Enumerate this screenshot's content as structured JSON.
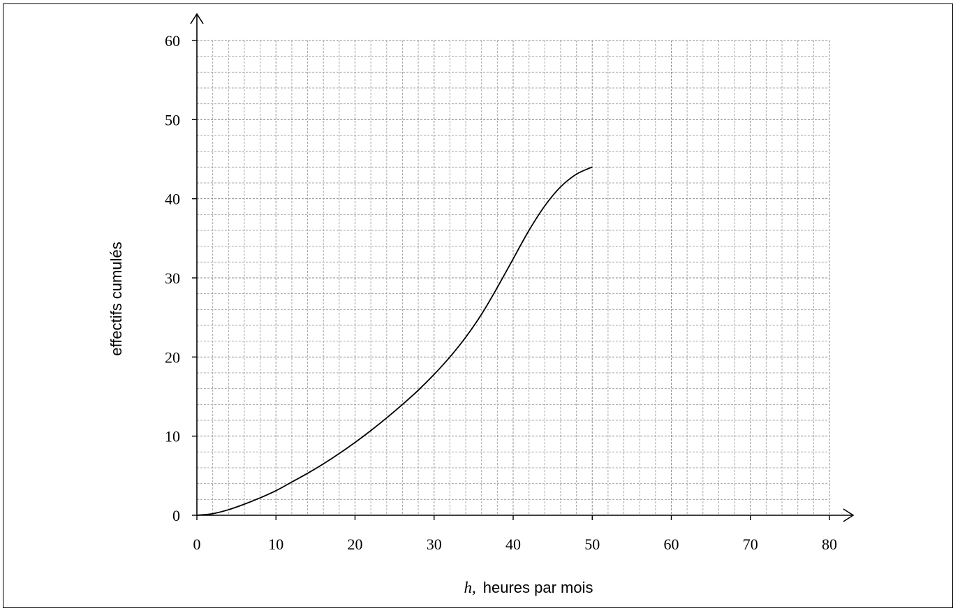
{
  "chart_data": {
    "type": "line",
    "title": "",
    "xlabel_var": "h,",
    "xlabel": "heures par mois",
    "ylabel": "effectifs cumulés",
    "xlim": [
      0,
      80
    ],
    "ylim": [
      0,
      60
    ],
    "grid": true,
    "x_ticks": [
      "0",
      "10",
      "20",
      "30",
      "40",
      "50",
      "60",
      "70",
      "80"
    ],
    "y_ticks": [
      "0",
      "10",
      "20",
      "30",
      "40",
      "50",
      "60"
    ],
    "series": [
      {
        "x": [
          0,
          2,
          4,
          6,
          8,
          10,
          12,
          14,
          16,
          18,
          20,
          22,
          24,
          26,
          28,
          30,
          32,
          34,
          36,
          38,
          40,
          42,
          44,
          46,
          48,
          50
        ],
        "y": [
          0,
          0.2,
          0.7,
          1.4,
          2.2,
          3.1,
          4.2,
          5.3,
          6.5,
          7.8,
          9.2,
          10.7,
          12.3,
          14.0,
          15.8,
          17.8,
          20.0,
          22.5,
          25.4,
          28.8,
          32.4,
          36.0,
          39.1,
          41.5,
          43.1,
          44.0
        ],
        "color": "#000000"
      }
    ]
  }
}
